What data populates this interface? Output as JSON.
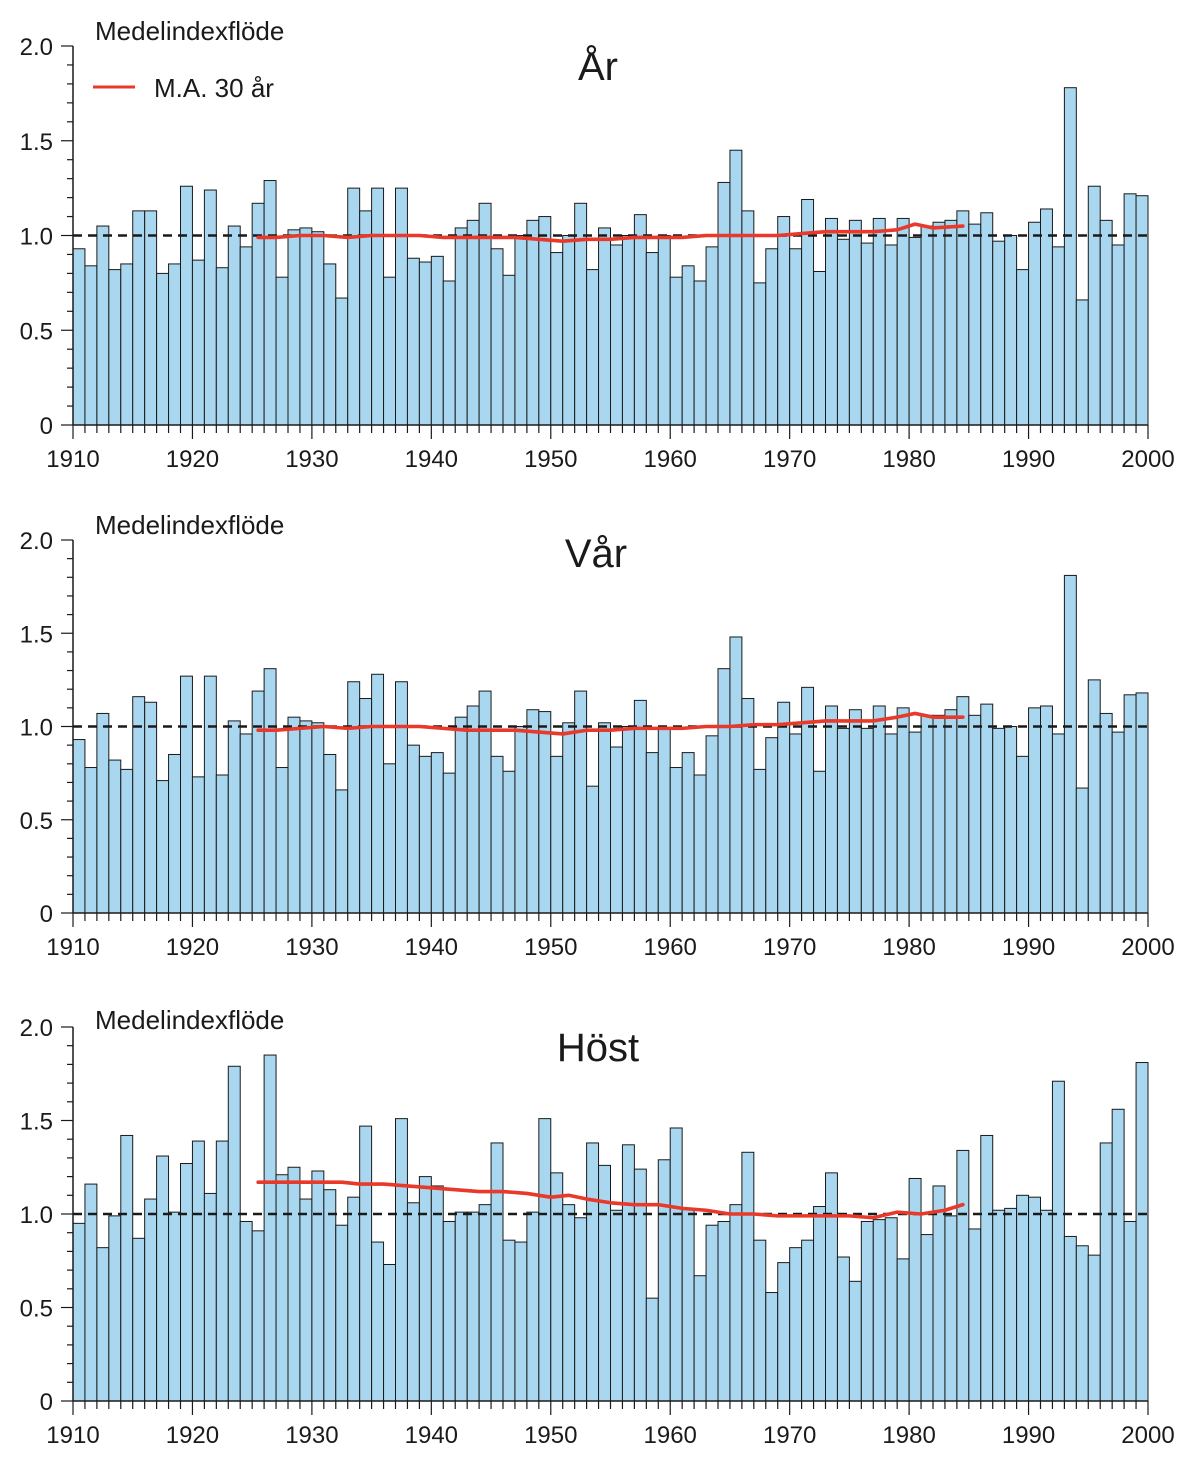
{
  "charts": [
    {
      "panel": "ar",
      "title": "År",
      "ylabel": "Medelindexflöde",
      "legend": "M.A. 30 år"
    },
    {
      "panel": "var",
      "title": "Vår",
      "ylabel": "Medelindexflöde",
      "legend": ""
    },
    {
      "panel": "host",
      "title": "Höst",
      "ylabel": "Medelindexflöde",
      "legend": ""
    }
  ],
  "chart_data": [
    {
      "type": "bar",
      "title": "År",
      "ylabel": "Medelindexflöde",
      "xlim": [
        1910,
        2000
      ],
      "ylim": [
        0,
        2.0
      ],
      "yticks": [
        0,
        0.5,
        1.0,
        1.5,
        2.0
      ],
      "ytick_labels": [
        "0",
        "0.5",
        "1.0",
        "1.5",
        "2.0"
      ],
      "xticks": [
        1910,
        1920,
        1930,
        1940,
        1950,
        1960,
        1970,
        1980,
        1990,
        2000
      ],
      "xtick_labels": [
        "1910",
        "1920",
        "1930",
        "1940",
        "1950",
        "1960",
        "1970",
        "1980",
        "1990",
        "2000"
      ],
      "reference_line": 1.0,
      "legend_position": "top-left",
      "bar_color": "#a9d7f0",
      "line_color": "#e8392a",
      "years": [
        1910,
        1911,
        1912,
        1913,
        1914,
        1915,
        1916,
        1917,
        1918,
        1919,
        1920,
        1921,
        1922,
        1923,
        1924,
        1925,
        1926,
        1927,
        1928,
        1929,
        1930,
        1931,
        1932,
        1933,
        1934,
        1935,
        1936,
        1937,
        1938,
        1939,
        1940,
        1941,
        1942,
        1943,
        1944,
        1945,
        1946,
        1947,
        1948,
        1949,
        1950,
        1951,
        1952,
        1953,
        1954,
        1955,
        1956,
        1957,
        1958,
        1959,
        1960,
        1961,
        1962,
        1963,
        1964,
        1965,
        1966,
        1967,
        1968,
        1969,
        1970,
        1971,
        1972,
        1973,
        1974,
        1975,
        1976,
        1977,
        1978,
        1979,
        1980,
        1981,
        1982,
        1983,
        1984,
        1985,
        1986,
        1987,
        1988,
        1989,
        1990,
        1991,
        1992,
        1993,
        1994,
        1995,
        1996,
        1997,
        1998,
        1999
      ],
      "values": [
        0.93,
        0.84,
        1.05,
        0.82,
        0.85,
        1.13,
        1.13,
        0.8,
        0.85,
        1.26,
        0.87,
        1.24,
        0.83,
        1.05,
        0.94,
        1.17,
        1.29,
        0.78,
        1.03,
        1.04,
        1.02,
        0.85,
        0.67,
        1.25,
        1.13,
        1.25,
        0.78,
        1.25,
        0.88,
        0.86,
        0.89,
        0.76,
        1.04,
        1.08,
        1.17,
        0.93,
        0.79,
        1.0,
        1.08,
        1.1,
        0.91,
        1.0,
        1.17,
        0.82,
        1.04,
        0.95,
        1.0,
        1.11,
        0.91,
        1.0,
        0.78,
        0.84,
        0.76,
        0.94,
        1.28,
        1.45,
        1.13,
        0.75,
        0.93,
        1.1,
        0.93,
        1.19,
        0.81,
        1.09,
        0.98,
        1.08,
        0.96,
        1.09,
        0.95,
        1.09,
        0.99,
        1.05,
        1.07,
        1.08,
        1.13,
        1.06,
        1.12,
        0.97,
        1.0,
        0.82,
        1.07,
        1.14,
        0.94,
        1.78,
        0.66,
        1.26,
        1.08,
        0.95,
        1.22,
        1.21
      ],
      "series": [
        {
          "name": "M.A. 30 år",
          "type": "line",
          "x": [
            1925.5,
            1927,
            1929,
            1931,
            1933,
            1935,
            1937,
            1939,
            1941,
            1943,
            1945,
            1947,
            1949,
            1951,
            1953,
            1955,
            1957,
            1959,
            1961,
            1963,
            1965,
            1967,
            1969,
            1971,
            1973,
            1975,
            1977,
            1979,
            1980.5,
            1982,
            1984.5
          ],
          "y": [
            0.99,
            0.99,
            1.0,
            1.0,
            0.99,
            1.0,
            1.0,
            1.0,
            0.99,
            0.99,
            0.99,
            0.99,
            0.98,
            0.97,
            0.98,
            0.98,
            0.99,
            0.99,
            0.99,
            1.0,
            1.0,
            1.0,
            1.0,
            1.01,
            1.02,
            1.02,
            1.02,
            1.03,
            1.06,
            1.04,
            1.05
          ]
        }
      ]
    },
    {
      "type": "bar",
      "title": "Vår",
      "ylabel": "Medelindexflöde",
      "xlim": [
        1910,
        2000
      ],
      "ylim": [
        0,
        2.0
      ],
      "yticks": [
        0,
        0.5,
        1.0,
        1.5,
        2.0
      ],
      "ytick_labels": [
        "0",
        "0.5",
        "1.0",
        "1.5",
        "2.0"
      ],
      "xticks": [
        1910,
        1920,
        1930,
        1940,
        1950,
        1960,
        1970,
        1980,
        1990,
        2000
      ],
      "xtick_labels": [
        "1910",
        "1920",
        "1930",
        "1940",
        "1950",
        "1960",
        "1970",
        "1980",
        "1990",
        "2000"
      ],
      "reference_line": 1.0,
      "bar_color": "#a9d7f0",
      "line_color": "#e8392a",
      "years": [
        1910,
        1911,
        1912,
        1913,
        1914,
        1915,
        1916,
        1917,
        1918,
        1919,
        1920,
        1921,
        1922,
        1923,
        1924,
        1925,
        1926,
        1927,
        1928,
        1929,
        1930,
        1931,
        1932,
        1933,
        1934,
        1935,
        1936,
        1937,
        1938,
        1939,
        1940,
        1941,
        1942,
        1943,
        1944,
        1945,
        1946,
        1947,
        1948,
        1949,
        1950,
        1951,
        1952,
        1953,
        1954,
        1955,
        1956,
        1957,
        1958,
        1959,
        1960,
        1961,
        1962,
        1963,
        1964,
        1965,
        1966,
        1967,
        1968,
        1969,
        1970,
        1971,
        1972,
        1973,
        1974,
        1975,
        1976,
        1977,
        1978,
        1979,
        1980,
        1981,
        1982,
        1983,
        1984,
        1985,
        1986,
        1987,
        1988,
        1989,
        1990,
        1991,
        1992,
        1993,
        1994,
        1995,
        1996,
        1997,
        1998,
        1999
      ],
      "values": [
        0.93,
        0.78,
        1.07,
        0.82,
        0.77,
        1.16,
        1.13,
        0.71,
        0.85,
        1.27,
        0.73,
        1.27,
        0.74,
        1.03,
        0.96,
        1.19,
        1.31,
        0.78,
        1.05,
        1.03,
        1.02,
        0.85,
        0.66,
        1.24,
        1.15,
        1.28,
        0.8,
        1.24,
        0.9,
        0.84,
        0.86,
        0.75,
        1.05,
        1.11,
        1.19,
        0.84,
        0.76,
        1.0,
        1.09,
        1.08,
        0.84,
        1.02,
        1.19,
        0.68,
        1.02,
        0.89,
        1.0,
        1.14,
        0.86,
        0.99,
        0.78,
        0.86,
        0.74,
        0.95,
        1.31,
        1.48,
        1.15,
        0.77,
        0.94,
        1.13,
        0.96,
        1.21,
        0.76,
        1.11,
        0.99,
        1.09,
        0.99,
        1.11,
        0.96,
        1.1,
        0.97,
        1.06,
        1.06,
        1.09,
        1.16,
        1.06,
        1.12,
        0.99,
        1.0,
        0.84,
        1.1,
        1.11,
        0.96,
        1.81,
        0.67,
        1.25,
        1.07,
        0.97,
        1.17,
        1.18
      ],
      "series": [
        {
          "name": "M.A. 30 år",
          "type": "line",
          "x": [
            1925.5,
            1927,
            1929,
            1931,
            1933,
            1935,
            1937,
            1939,
            1941,
            1943,
            1945,
            1947,
            1949,
            1951,
            1953,
            1955,
            1957,
            1959,
            1961,
            1963,
            1965,
            1967,
            1969,
            1971,
            1973,
            1975,
            1977,
            1979,
            1980.5,
            1982,
            1984.5
          ],
          "y": [
            0.98,
            0.98,
            0.99,
            1.0,
            0.99,
            1.0,
            1.0,
            1.0,
            0.99,
            0.98,
            0.98,
            0.98,
            0.97,
            0.96,
            0.98,
            0.98,
            0.99,
            0.99,
            0.99,
            1.0,
            1.0,
            1.01,
            1.01,
            1.02,
            1.03,
            1.03,
            1.03,
            1.05,
            1.07,
            1.05,
            1.05
          ]
        }
      ]
    },
    {
      "type": "bar",
      "title": "Höst",
      "ylabel": "Medelindexflöde",
      "xlim": [
        1910,
        2000
      ],
      "ylim": [
        0,
        2.0
      ],
      "yticks": [
        0,
        0.5,
        1.0,
        1.5,
        2.0
      ],
      "ytick_labels": [
        "0",
        "0.5",
        "1.0",
        "1.5",
        "2.0"
      ],
      "xticks": [
        1910,
        1920,
        1930,
        1940,
        1950,
        1960,
        1970,
        1980,
        1990,
        2000
      ],
      "xtick_labels": [
        "1910",
        "1920",
        "1930",
        "1940",
        "1950",
        "1960",
        "1970",
        "1980",
        "1990",
        "2000"
      ],
      "reference_line": 1.0,
      "bar_color": "#a9d7f0",
      "line_color": "#e8392a",
      "years": [
        1910,
        1911,
        1912,
        1913,
        1914,
        1915,
        1916,
        1917,
        1918,
        1919,
        1920,
        1921,
        1922,
        1923,
        1924,
        1925,
        1926,
        1927,
        1928,
        1929,
        1930,
        1931,
        1932,
        1933,
        1934,
        1935,
        1936,
        1937,
        1938,
        1939,
        1940,
        1941,
        1942,
        1943,
        1944,
        1945,
        1946,
        1947,
        1948,
        1949,
        1950,
        1951,
        1952,
        1953,
        1954,
        1955,
        1956,
        1957,
        1958,
        1959,
        1960,
        1961,
        1962,
        1963,
        1964,
        1965,
        1966,
        1967,
        1968,
        1969,
        1970,
        1971,
        1972,
        1973,
        1974,
        1975,
        1976,
        1977,
        1978,
        1979,
        1980,
        1981,
        1982,
        1983,
        1984,
        1985,
        1986,
        1987,
        1988,
        1989,
        1990,
        1991,
        1992,
        1993,
        1994,
        1995,
        1996,
        1997,
        1998,
        1999
      ],
      "values": [
        0.95,
        1.16,
        0.82,
        0.99,
        1.42,
        0.87,
        1.08,
        1.31,
        1.01,
        1.27,
        1.39,
        1.11,
        1.39,
        1.79,
        0.96,
        0.91,
        1.85,
        1.21,
        1.25,
        1.08,
        1.23,
        1.13,
        0.94,
        1.09,
        1.47,
        0.85,
        0.73,
        1.51,
        1.06,
        1.2,
        1.15,
        0.96,
        1.01,
        1.01,
        1.05,
        1.38,
        0.86,
        0.85,
        1.01,
        1.51,
        1.22,
        1.05,
        0.98,
        1.38,
        1.26,
        1.02,
        1.37,
        1.24,
        0.55,
        1.29,
        1.46,
        1.03,
        0.67,
        0.94,
        0.96,
        1.05,
        1.33,
        0.86,
        0.58,
        0.74,
        0.82,
        0.86,
        1.04,
        1.22,
        0.77,
        0.64,
        0.96,
        0.97,
        0.98,
        0.76,
        1.19,
        0.89,
        1.15,
        0.99,
        1.34,
        0.92,
        1.42,
        1.02,
        1.03,
        1.1,
        1.09,
        1.02,
        1.71,
        0.88,
        0.83,
        0.78,
        1.38,
        1.56,
        0.96,
        1.81
      ],
      "series": [
        {
          "name": "M.A. 30 år",
          "type": "line",
          "x": [
            1925.5,
            1927,
            1929,
            1931,
            1932.5,
            1934,
            1936,
            1938,
            1940,
            1942,
            1944,
            1946,
            1948,
            1950,
            1951.5,
            1953,
            1955,
            1957,
            1959,
            1961,
            1963,
            1965,
            1967,
            1969,
            1971,
            1973,
            1975,
            1977,
            1979,
            1981,
            1983,
            1984.5
          ],
          "y": [
            1.17,
            1.17,
            1.17,
            1.17,
            1.17,
            1.16,
            1.16,
            1.15,
            1.14,
            1.13,
            1.12,
            1.12,
            1.11,
            1.09,
            1.1,
            1.08,
            1.06,
            1.05,
            1.05,
            1.03,
            1.02,
            1.0,
            1.0,
            0.99,
            0.99,
            0.99,
            0.99,
            0.98,
            1.01,
            1.0,
            1.02,
            1.05
          ]
        }
      ]
    }
  ]
}
